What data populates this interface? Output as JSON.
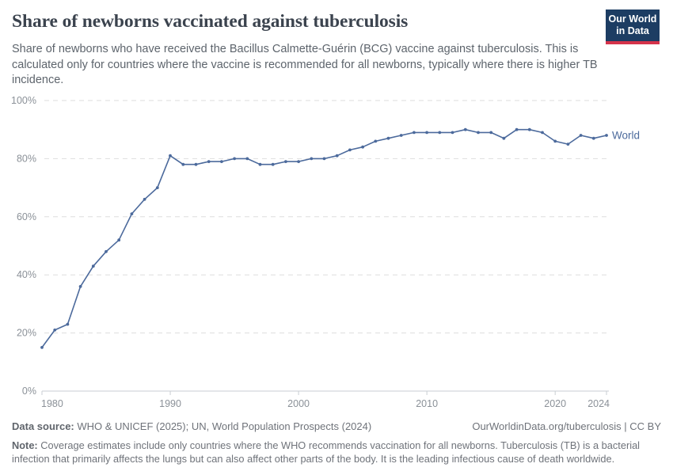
{
  "header": {
    "title": "Share of newborns vaccinated against tuberculosis",
    "subtitle": "Share of newborns who have received the Bacillus Calmette-Guérin (BCG) vaccine against tuberculosis. This is calculated only for countries where the vaccine is recommended for all newborns, typically where there is higher TB incidence.",
    "logo_line1": "Our World",
    "logo_line2": "in Data"
  },
  "chart_data": {
    "type": "line",
    "title": "Share of newborns vaccinated against tuberculosis",
    "x": [
      1980,
      1981,
      1982,
      1983,
      1984,
      1985,
      1986,
      1987,
      1988,
      1989,
      1990,
      1991,
      1992,
      1993,
      1994,
      1995,
      1996,
      1997,
      1998,
      1999,
      2000,
      2001,
      2002,
      2003,
      2004,
      2005,
      2006,
      2007,
      2008,
      2009,
      2010,
      2011,
      2012,
      2013,
      2014,
      2015,
      2016,
      2017,
      2018,
      2019,
      2020,
      2021,
      2022,
      2023,
      2024
    ],
    "series": [
      {
        "name": "World",
        "values": [
          15,
          21,
          23,
          36,
          43,
          48,
          52,
          61,
          66,
          70,
          81,
          78,
          78,
          79,
          79,
          80,
          80,
          78,
          78,
          79,
          79,
          80,
          80,
          81,
          83,
          84,
          86,
          87,
          88,
          89,
          89,
          89,
          89,
          90,
          89,
          89,
          87,
          90,
          90,
          89,
          86,
          85,
          88,
          87,
          88
        ]
      }
    ],
    "xlabel": "",
    "ylabel": "",
    "ylim": [
      0,
      100
    ],
    "xlim": [
      1980,
      2024
    ],
    "ytick_values": [
      0,
      20,
      40,
      60,
      80,
      100
    ],
    "ytick_labels": [
      "0%",
      "20%",
      "40%",
      "60%",
      "80%",
      "100%"
    ],
    "xtick_values": [
      1980,
      1990,
      2000,
      2010,
      2020,
      2024
    ],
    "xtick_labels": [
      "1980",
      "1990",
      "2000",
      "2010",
      "2020",
      "2024"
    ],
    "grid": "horizontal dashed gridlines, legend as end-of-line label",
    "end_label": "World"
  },
  "footer": {
    "datasource_label": "Data source:",
    "datasource_text": " WHO & UNICEF (2025); UN, World Population Prospects (2024)",
    "link": "OurWorldinData.org/tuberculosis | CC BY",
    "note_label": "Note:",
    "note_text": " Coverage estimates include only countries where the WHO recommends vaccination for all newborns. Tuberculosis (TB) is a bacterial infection that primarily affects the lungs but can also affect other parts of the body. It is the leading infectious cause of death worldwide."
  },
  "colors": {
    "line": "#4C6A9C",
    "title_text": "#3b434e",
    "subtitle_text": "#5d646c",
    "axis_text": "#8b9198",
    "grid_line": "#dedede",
    "axis_line": "#c9ced3",
    "footer_text": "#6f737a",
    "logo_bg": "#1d3d63",
    "logo_red": "#d5334b",
    "background": "#ffffff"
  }
}
